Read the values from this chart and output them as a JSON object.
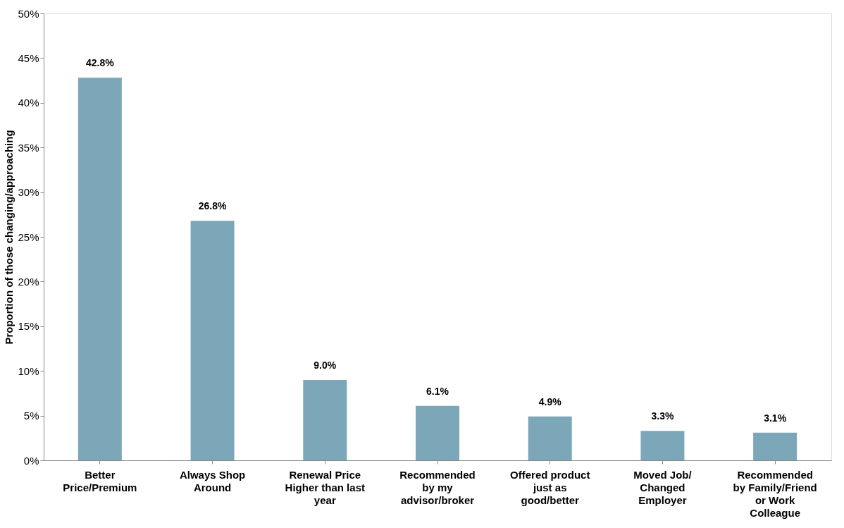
{
  "chart_data": {
    "type": "bar",
    "categories": [
      "Better\nPrice/Premium",
      "Always Shop\nAround",
      "Renewal Price\nHigher than last\nyear",
      "Recommended\nby my\nadvisor/broker",
      "Offered product\njust as\ngood/better",
      "Moved Job/\nChanged\nEmployer",
      "Recommended\nby Family/Friend\nor Work\nColleague"
    ],
    "values": [
      42.8,
      26.8,
      9.0,
      6.1,
      4.9,
      3.3,
      3.1
    ],
    "value_labels": [
      "42.8%",
      "26.8%",
      "9.0%",
      "6.1%",
      "4.9%",
      "3.3%",
      "3.1%"
    ],
    "color": "#7ba7b8",
    "ylabel": "Proportion of those changing/approaching",
    "ylim": [
      0,
      50
    ],
    "yticks": [
      {
        "value": 0,
        "label": "0%"
      },
      {
        "value": 5,
        "label": "5%"
      },
      {
        "value": 10,
        "label": "10%"
      },
      {
        "value": 15,
        "label": "15%"
      },
      {
        "value": 20,
        "label": "20%"
      },
      {
        "value": 25,
        "label": "25%"
      },
      {
        "value": 30,
        "label": "30%"
      },
      {
        "value": 35,
        "label": "35%"
      },
      {
        "value": 40,
        "label": "40%"
      },
      {
        "value": 45,
        "label": "45%"
      },
      {
        "value": 50,
        "label": "50%"
      }
    ],
    "grid": false
  }
}
